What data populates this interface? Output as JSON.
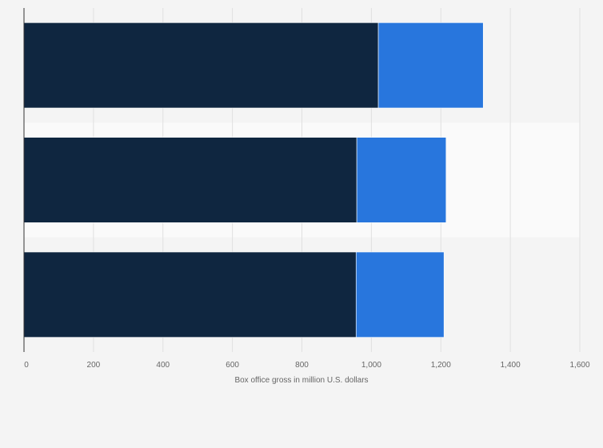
{
  "chart_data": {
    "type": "bar",
    "orientation": "horizontal",
    "stacked": true,
    "categories": [
      "",
      "",
      ""
    ],
    "series": [
      {
        "values": [
          1020,
          958,
          956
        ],
        "color": "#0f2640"
      },
      {
        "values": [
          302,
          257,
          253
        ],
        "color": "#2876dd"
      }
    ],
    "xlabel": "Box office gross in million U.S. dollars",
    "ylabel": "",
    "xlim": [
      0,
      1600
    ],
    "xticks": [
      0,
      200,
      400,
      600,
      800,
      1000,
      1200,
      1400,
      1600
    ],
    "xtick_labels": [
      "0",
      "200",
      "400",
      "600",
      "800",
      "1,000",
      "1,200",
      "1,400",
      "1,600"
    ],
    "grid": true,
    "legend": "none"
  }
}
